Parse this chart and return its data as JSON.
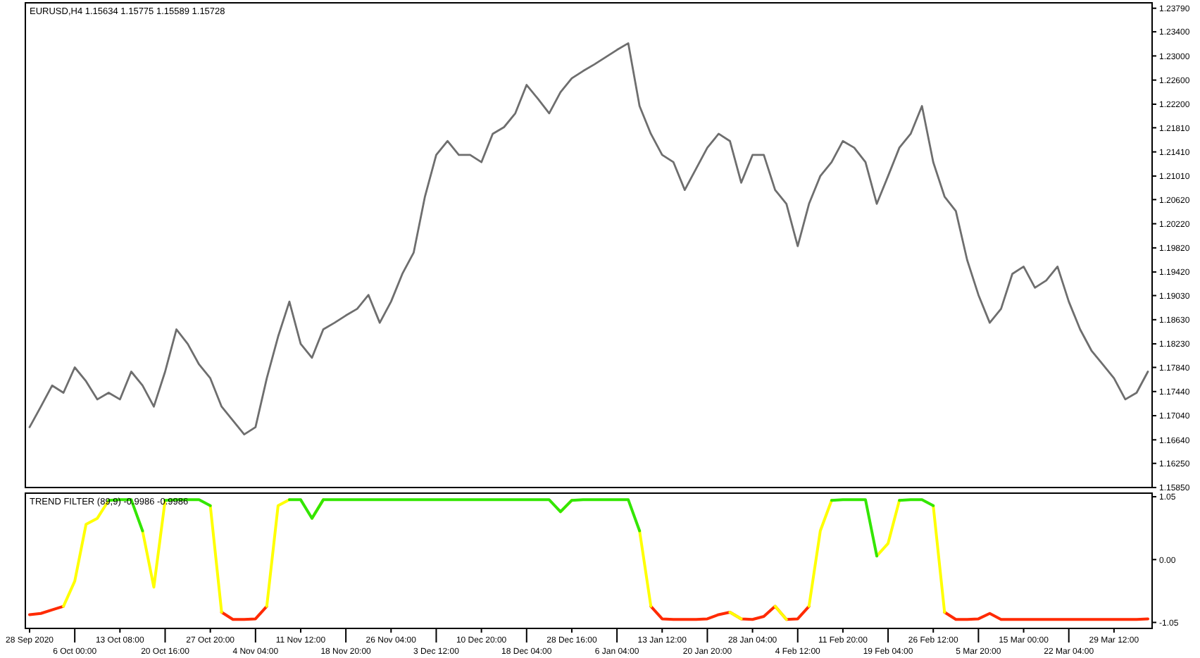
{
  "chart_data": [
    {
      "type": "line",
      "title": "EURUSD,H4  1.15634 1.15775 1.15589 1.15728",
      "tick_labels": "y",
      "ylim": [
        1.1585,
        1.2388
      ],
      "yticks": [
        {
          "value": 1.2379,
          "label": "1.23790"
        },
        {
          "value": 1.234,
          "label": "1.23400"
        },
        {
          "value": 1.23,
          "label": "1.23000"
        },
        {
          "value": 1.226,
          "label": "1.22600"
        },
        {
          "value": 1.222,
          "label": "1.22200"
        },
        {
          "value": 1.2181,
          "label": "1.21810"
        },
        {
          "value": 1.2141,
          "label": "1.21410"
        },
        {
          "value": 1.2101,
          "label": "1.21010"
        },
        {
          "value": 1.2062,
          "label": "1.20620"
        },
        {
          "value": 1.2022,
          "label": "1.20220"
        },
        {
          "value": 1.1982,
          "label": "1.19820"
        },
        {
          "value": 1.1942,
          "label": "1.19420"
        },
        {
          "value": 1.1903,
          "label": "1.19030"
        },
        {
          "value": 1.1863,
          "label": "1.18630"
        },
        {
          "value": 1.1823,
          "label": "1.18230"
        },
        {
          "value": 1.1784,
          "label": "1.17840"
        },
        {
          "value": 1.1744,
          "label": "1.17440"
        },
        {
          "value": 1.1704,
          "label": "1.17040"
        },
        {
          "value": 1.1664,
          "label": "1.16640"
        },
        {
          "value": 1.1625,
          "label": "1.16250"
        },
        {
          "value": 1.1585,
          "label": "1.15850"
        }
      ],
      "series": [
        {
          "color": "#6e6e6e",
          "values": [
            1.1685,
            1.1719,
            1.1754,
            1.1742,
            1.1784,
            1.1761,
            1.1731,
            1.1742,
            1.1731,
            1.1777,
            1.1754,
            1.1719,
            1.1777,
            1.1847,
            1.1823,
            1.1789,
            1.1766,
            1.1719,
            1.1696,
            1.1673,
            1.1685,
            1.1766,
            1.1835,
            1.1893,
            1.1823,
            1.18,
            1.1847,
            1.1858,
            1.187,
            1.1881,
            1.1904,
            1.1858,
            1.1893,
            1.1939,
            1.1974,
            1.2067,
            1.2136,
            1.2159,
            1.2136,
            1.2136,
            1.2124,
            1.2171,
            1.2182,
            1.2205,
            1.2252,
            1.2229,
            1.2205,
            1.224,
            1.2263,
            1.2275,
            1.2286,
            1.2298,
            1.231,
            1.2321,
            1.2217,
            1.2171,
            1.2136,
            1.2124,
            1.2078,
            1.2113,
            1.2148,
            1.2171,
            1.2159,
            1.209,
            1.2136,
            1.2136,
            1.2078,
            1.2055,
            1.1985,
            1.2055,
            1.2101,
            1.2124,
            1.2159,
            1.2148,
            1.2124,
            1.2055,
            1.2101,
            1.2148,
            1.2171,
            1.2217,
            1.2124,
            1.2067,
            1.2043,
            1.1962,
            1.1904,
            1.1858,
            1.1881,
            1.1939,
            1.1951,
            1.1916,
            1.1928,
            1.1951,
            1.1893,
            1.1847,
            1.1812,
            1.1789,
            1.1766,
            1.1731,
            1.1742,
            1.1777
          ]
        }
      ]
    },
    {
      "type": "line",
      "title": "TREND FILTER (89,9) -0.9986 -0.9986",
      "categories": [
        "28 Sep 2020",
        null,
        null,
        null,
        "6 Oct 00:00",
        null,
        null,
        null,
        "13 Oct 08:00",
        null,
        null,
        null,
        "20 Oct 16:00",
        null,
        null,
        null,
        "27 Oct 20:00",
        null,
        null,
        null,
        "4 Nov 04:00",
        null,
        null,
        null,
        "11 Nov 12:00",
        null,
        null,
        null,
        "18 Nov 20:00",
        null,
        null,
        null,
        "26 Nov 04:00",
        null,
        null,
        null,
        "3 Dec 12:00",
        null,
        null,
        null,
        "10 Dec 20:00",
        null,
        null,
        null,
        "18 Dec 04:00",
        null,
        null,
        null,
        "28 Dec 16:00",
        null,
        null,
        null,
        "6 Jan 04:00",
        null,
        null,
        null,
        "13 Jan 12:00",
        null,
        null,
        null,
        "20 Jan 20:00",
        null,
        null,
        null,
        "28 Jan 04:00",
        null,
        null,
        null,
        "4 Feb 12:00",
        null,
        null,
        null,
        "11 Feb 20:00",
        null,
        null,
        null,
        "19 Feb 04:00",
        null,
        null,
        null,
        "26 Feb 12:00",
        null,
        null,
        null,
        "5 Mar 20:00",
        null,
        null,
        null,
        "15 Mar 00:00",
        null,
        null,
        null,
        "22 Mar 04:00",
        null,
        null,
        null,
        "29 Mar 12:00",
        null,
        null,
        null
      ],
      "ylim": [
        -1.15,
        1.11
      ],
      "yticks": [
        {
          "value": 1.05,
          "label": "1.05"
        },
        {
          "value": 0,
          "label": "0.00"
        },
        {
          "value": -1.05,
          "label": "-1.05"
        }
      ],
      "series": [
        {
          "color": "#ff2a00",
          "values": [
            -0.92,
            -0.9,
            -0.84,
            -0.78,
            null,
            null,
            null,
            null,
            null,
            null,
            null,
            null,
            null,
            null,
            null,
            null,
            null,
            -0.88,
            -1,
            -1,
            -0.99,
            -0.78,
            null,
            null,
            null,
            null,
            null,
            null,
            null,
            null,
            null,
            null,
            null,
            null,
            null,
            null,
            null,
            null,
            null,
            null,
            null,
            null,
            null,
            null,
            null,
            null,
            null,
            null,
            null,
            null,
            null,
            null,
            null,
            null,
            null,
            -0.78,
            -0.99,
            -1,
            -1,
            -1,
            -0.99,
            -0.92,
            -0.88,
            -0.99,
            -1,
            -0.95,
            -0.78,
            -1,
            -0.99,
            -0.78,
            null,
            null,
            null,
            null,
            null,
            null,
            null,
            null,
            null,
            null,
            null,
            -0.88,
            -1,
            -1,
            -0.99,
            -0.9,
            -1,
            -1,
            -1,
            -1,
            -1,
            -1,
            -1,
            -1,
            -1,
            -1,
            -1,
            -1,
            -1,
            -0.99
          ]
        },
        {
          "color": "#ffff00",
          "values": [
            null,
            null,
            null,
            -0.78,
            -0.36,
            0.59,
            0.69,
            0.99,
            null,
            null,
            0.48,
            -0.46,
            0.99,
            null,
            null,
            null,
            0.9,
            -0.88,
            null,
            null,
            null,
            -0.78,
            0.9,
            1,
            null,
            0.69,
            1,
            null,
            null,
            null,
            null,
            null,
            null,
            null,
            null,
            null,
            null,
            null,
            null,
            null,
            null,
            null,
            null,
            null,
            null,
            null,
            null,
            0.8,
            0.99,
            null,
            null,
            null,
            null,
            null,
            0.48,
            -0.78,
            null,
            null,
            null,
            null,
            null,
            null,
            -0.88,
            -0.99,
            null,
            null,
            -0.78,
            -1,
            null,
            -0.78,
            0.48,
            0.99,
            null,
            null,
            null,
            0.06,
            0.27,
            0.99,
            null,
            null,
            0.9,
            -0.88,
            null,
            null,
            null,
            null,
            null,
            null,
            null,
            null,
            null,
            null,
            null,
            null,
            null,
            null,
            null,
            null,
            null,
            null
          ]
        },
        {
          "color": "#33e600",
          "values": [
            null,
            null,
            null,
            null,
            null,
            null,
            null,
            0.99,
            1,
            1,
            0.48,
            null,
            0.99,
            1,
            1,
            1,
            0.9,
            null,
            null,
            null,
            null,
            null,
            null,
            1,
            1,
            0.69,
            1,
            1,
            1,
            1,
            1,
            1,
            1,
            1,
            1,
            1,
            1,
            1,
            1,
            1,
            1,
            1,
            1,
            1,
            1,
            1,
            1,
            0.8,
            0.99,
            1,
            1,
            1,
            1,
            1,
            0.48,
            null,
            null,
            null,
            null,
            null,
            null,
            null,
            null,
            null,
            null,
            null,
            null,
            null,
            null,
            null,
            null,
            0.99,
            1,
            1,
            1,
            0.06,
            null,
            0.99,
            1,
            1,
            0.9,
            null,
            null,
            null,
            null,
            null,
            null,
            null,
            null,
            null,
            null,
            null,
            null,
            null,
            null,
            null,
            null,
            null,
            null,
            null
          ]
        }
      ]
    }
  ]
}
